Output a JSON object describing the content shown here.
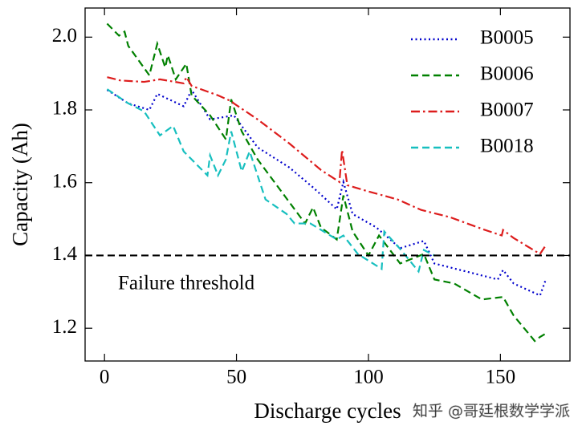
{
  "chart_data": {
    "type": "line",
    "xlabel": "Discharge cycles",
    "ylabel": "Capacity (Ah)",
    "xlim": [
      -7.35,
      176.35
    ],
    "ylim": [
      1.11,
      2.08
    ],
    "xticks": [
      0,
      50,
      100,
      150
    ],
    "yticks": [
      1.2,
      1.4,
      1.6,
      1.8,
      {
        "value": 2,
        "label": "2.0"
      }
    ],
    "legend": "upper right",
    "grid": false,
    "threshold": 1.4,
    "threshold_color": "#000000",
    "threshold_label": "Failure threshold",
    "watermark": "知乎 @哥廷根数学学派",
    "series": [
      {
        "name": "B0005",
        "color": "#0000cc",
        "linestyle": "dotted",
        "x": [
          1,
          9,
          17,
          20,
          30,
          33,
          40,
          49,
          58,
          70,
          79,
          88,
          90.5,
          94,
          103,
          112,
          121,
          125,
          137,
          149,
          151,
          155,
          165,
          167
        ],
        "values": [
          1.855,
          1.818,
          1.8,
          1.844,
          1.81,
          1.855,
          1.774,
          1.785,
          1.697,
          1.642,
          1.587,
          1.527,
          1.602,
          1.514,
          1.477,
          1.42,
          1.44,
          1.378,
          1.356,
          1.334,
          1.36,
          1.323,
          1.29,
          1.33
        ]
      },
      {
        "name": "B0006",
        "color": "#008000",
        "linestyle": "dashed",
        "x": [
          1,
          5.5,
          7.6,
          9,
          17,
          20,
          23,
          24,
          27,
          31,
          33,
          40,
          46,
          48,
          52,
          58,
          67,
          76,
          79,
          82,
          88,
          90.5,
          94,
          100,
          104,
          112,
          121,
          125,
          132.5,
          143,
          151,
          155,
          163,
          165,
          168
        ],
        "values": [
          2.037,
          2.004,
          2.015,
          1.976,
          1.895,
          1.982,
          1.917,
          1.95,
          1.884,
          1.927,
          1.84,
          1.785,
          1.719,
          1.829,
          1.741,
          1.664,
          1.576,
          1.488,
          1.532,
          1.477,
          1.444,
          1.565,
          1.466,
          1.4,
          1.455,
          1.378,
          1.404,
          1.334,
          1.323,
          1.279,
          1.286,
          1.235,
          1.165,
          1.176,
          1.189
        ]
      },
      {
        "name": "B0007",
        "color": "#dd1c1c",
        "linestyle": "dashdot",
        "x": [
          1,
          6,
          15,
          21,
          30,
          31,
          33,
          43,
          48,
          49,
          58,
          70,
          82,
          89,
          90,
          92,
          100,
          111,
          120,
          131,
          143,
          150.5,
          151,
          155,
          165,
          167
        ],
        "values": [
          1.89,
          1.881,
          1.877,
          1.884,
          1.873,
          1.89,
          1.866,
          1.84,
          1.824,
          1.818,
          1.774,
          1.708,
          1.635,
          1.602,
          1.69,
          1.593,
          1.576,
          1.554,
          1.525,
          1.505,
          1.473,
          1.455,
          1.47,
          1.448,
          1.404,
          1.426
        ]
      },
      {
        "name": "B0018",
        "color": "#17bfbf",
        "linestyle": "dashed",
        "x": [
          1,
          9,
          15,
          21,
          26,
          30,
          39,
          40,
          43,
          46,
          48,
          52,
          55,
          61,
          69,
          72,
          78,
          88,
          90.5,
          96,
          105,
          106,
          112,
          119,
          121,
          125
        ],
        "values": [
          1.857,
          1.818,
          1.796,
          1.73,
          1.756,
          1.686,
          1.62,
          1.675,
          1.62,
          1.664,
          1.741,
          1.631,
          1.686,
          1.554,
          1.514,
          1.488,
          1.488,
          1.444,
          1.455,
          1.404,
          1.363,
          1.466,
          1.418,
          1.356,
          1.415,
          1.4
        ]
      }
    ]
  }
}
